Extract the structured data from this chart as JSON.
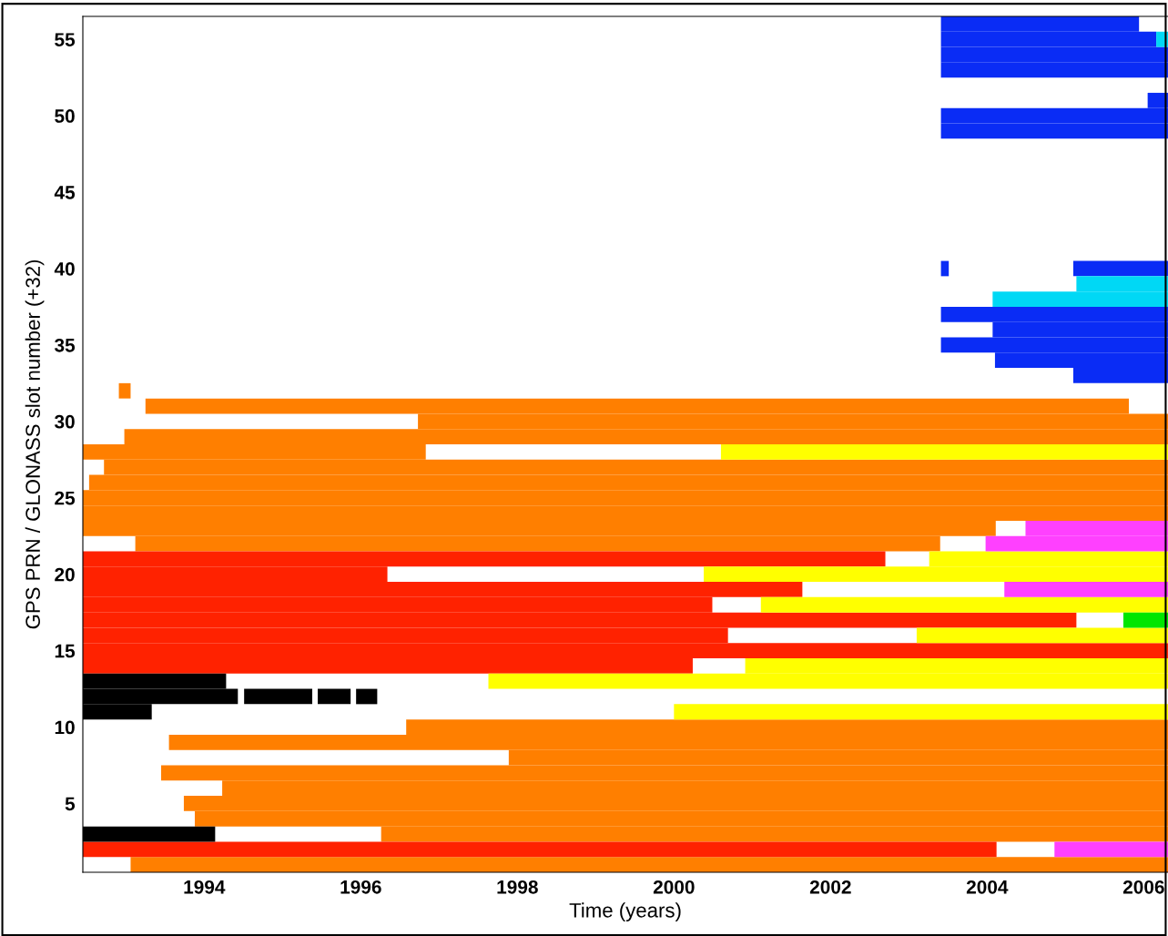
{
  "chart_data": {
    "type": "bar",
    "orientation": "horizontal",
    "xlabel": "Time (years)",
    "ylabel": "GPS PRN / GLONASS slot number (+32)",
    "categories": [
      null,
      "55",
      null,
      null,
      null,
      null,
      "50",
      null,
      null,
      null,
      null,
      "45",
      null,
      null,
      null,
      null,
      "40",
      null,
      null,
      null,
      null,
      "35",
      null,
      null,
      null,
      null,
      "30",
      null,
      null,
      null,
      null,
      "25",
      null,
      null,
      null,
      null,
      "20",
      null,
      null,
      null,
      null,
      "15",
      null,
      null,
      null,
      null,
      "10",
      null,
      null,
      null,
      null,
      "5",
      null,
      null,
      null,
      null
    ],
    "xlim": [
      1992.45,
      2006.31
    ],
    "xticks": [
      1994,
      1996,
      1998,
      2000,
      2002,
      2004,
      2006
    ],
    "series": [
      {
        "color": "#ff7f00",
        "base": [
          null,
          null,
          null,
          null,
          null,
          null,
          null,
          null,
          null,
          null,
          null,
          null,
          null,
          null,
          null,
          null,
          null,
          null,
          null,
          null,
          null,
          null,
          null,
          null,
          1992.91,
          1993.25,
          1996.73,
          1992.98,
          1992.45,
          1992.72,
          1992.53,
          1992.45,
          1992.45,
          1992.45,
          1993.12,
          null,
          null,
          null,
          null,
          null,
          null,
          null,
          null,
          null,
          null,
          null,
          1996.58,
          1993.55,
          1997.89,
          1993.45,
          1994.23,
          1993.74,
          1993.88,
          1996.26,
          null,
          1993.06
        ],
        "values": [
          null,
          null,
          null,
          null,
          null,
          null,
          null,
          null,
          null,
          null,
          null,
          null,
          null,
          null,
          null,
          null,
          null,
          null,
          null,
          null,
          null,
          null,
          null,
          null,
          0.15,
          12.56,
          9.58,
          13.33,
          4.38,
          13.59,
          13.78,
          13.86,
          13.86,
          11.66,
          10.28,
          null,
          null,
          null,
          null,
          null,
          null,
          null,
          null,
          null,
          null,
          null,
          9.73,
          12.76,
          8.42,
          12.86,
          12.08,
          12.57,
          12.43,
          10.05,
          null,
          13.25
        ]
      },
      {
        "color": "#ff2200",
        "base": [
          null,
          null,
          null,
          null,
          null,
          null,
          null,
          null,
          null,
          null,
          null,
          null,
          null,
          null,
          null,
          null,
          null,
          null,
          null,
          null,
          null,
          null,
          null,
          null,
          null,
          null,
          null,
          null,
          null,
          null,
          null,
          null,
          null,
          null,
          null,
          1992.45,
          1992.45,
          1992.45,
          1992.45,
          1992.45,
          1992.45,
          1992.45,
          1992.45,
          null,
          null,
          null,
          null,
          null,
          null,
          null,
          null,
          null,
          null,
          null,
          1992.45,
          null
        ],
        "values": [
          null,
          null,
          null,
          null,
          null,
          null,
          null,
          null,
          null,
          null,
          null,
          null,
          null,
          null,
          null,
          null,
          null,
          null,
          null,
          null,
          null,
          null,
          null,
          null,
          null,
          null,
          null,
          null,
          null,
          null,
          null,
          null,
          null,
          null,
          null,
          10.25,
          3.89,
          9.19,
          8.04,
          12.69,
          8.24,
          13.86,
          7.79,
          null,
          null,
          null,
          null,
          null,
          null,
          null,
          null,
          null,
          null,
          null,
          11.67,
          null
        ]
      },
      {
        "color": "#000000",
        "base": [
          null,
          null,
          null,
          null,
          null,
          null,
          null,
          null,
          null,
          null,
          null,
          null,
          null,
          null,
          null,
          null,
          null,
          null,
          null,
          null,
          null,
          null,
          null,
          null,
          null,
          null,
          null,
          null,
          null,
          null,
          null,
          null,
          null,
          null,
          null,
          null,
          null,
          null,
          null,
          null,
          null,
          null,
          null,
          1992.45,
          1992.45,
          1992.45,
          null,
          null,
          null,
          null,
          null,
          null,
          null,
          1992.45,
          null,
          null
        ],
        "values": [
          null,
          null,
          null,
          null,
          null,
          null,
          null,
          null,
          null,
          null,
          null,
          null,
          null,
          null,
          null,
          null,
          null,
          null,
          null,
          null,
          null,
          null,
          null,
          null,
          null,
          null,
          null,
          null,
          null,
          null,
          null,
          null,
          null,
          null,
          null,
          null,
          null,
          null,
          null,
          null,
          null,
          null,
          null,
          1.83,
          1.98,
          0.88,
          null,
          null,
          null,
          null,
          null,
          null,
          null,
          1.69,
          null,
          null
        ]
      },
      {
        "color": "#000000",
        "base": [
          null,
          null,
          null,
          null,
          null,
          null,
          null,
          null,
          null,
          null,
          null,
          null,
          null,
          null,
          null,
          null,
          null,
          null,
          null,
          null,
          null,
          null,
          null,
          null,
          null,
          null,
          null,
          null,
          null,
          null,
          null,
          null,
          null,
          null,
          null,
          null,
          null,
          null,
          null,
          null,
          null,
          null,
          null,
          null,
          1994.51,
          null,
          null,
          null,
          null,
          null,
          null,
          null,
          null,
          null,
          null,
          null
        ],
        "values": [
          null,
          null,
          null,
          null,
          null,
          null,
          null,
          null,
          null,
          null,
          null,
          null,
          null,
          null,
          null,
          null,
          null,
          null,
          null,
          null,
          null,
          null,
          null,
          null,
          null,
          null,
          null,
          null,
          null,
          null,
          null,
          null,
          null,
          null,
          null,
          null,
          null,
          null,
          null,
          null,
          null,
          null,
          null,
          null,
          0.87,
          null,
          null,
          null,
          null,
          null,
          null,
          null,
          null,
          null,
          null,
          null
        ]
      },
      {
        "color": "#000000",
        "base": [
          null,
          null,
          null,
          null,
          null,
          null,
          null,
          null,
          null,
          null,
          null,
          null,
          null,
          null,
          null,
          null,
          null,
          null,
          null,
          null,
          null,
          null,
          null,
          null,
          null,
          null,
          null,
          null,
          null,
          null,
          null,
          null,
          null,
          null,
          null,
          null,
          null,
          null,
          null,
          null,
          null,
          null,
          null,
          null,
          1995.45,
          null,
          null,
          null,
          null,
          null,
          null,
          null,
          null,
          null,
          null,
          null
        ],
        "values": [
          null,
          null,
          null,
          null,
          null,
          null,
          null,
          null,
          null,
          null,
          null,
          null,
          null,
          null,
          null,
          null,
          null,
          null,
          null,
          null,
          null,
          null,
          null,
          null,
          null,
          null,
          null,
          null,
          null,
          null,
          null,
          null,
          null,
          null,
          null,
          null,
          null,
          null,
          null,
          null,
          null,
          null,
          null,
          null,
          0.42,
          null,
          null,
          null,
          null,
          null,
          null,
          null,
          null,
          null,
          null,
          null
        ]
      },
      {
        "color": "#000000",
        "base": [
          null,
          null,
          null,
          null,
          null,
          null,
          null,
          null,
          null,
          null,
          null,
          null,
          null,
          null,
          null,
          null,
          null,
          null,
          null,
          null,
          null,
          null,
          null,
          null,
          null,
          null,
          null,
          null,
          null,
          null,
          null,
          null,
          null,
          null,
          null,
          null,
          null,
          null,
          null,
          null,
          null,
          null,
          null,
          null,
          1995.94,
          null,
          null,
          null,
          null,
          null,
          null,
          null,
          null,
          null,
          null,
          null
        ],
        "values": [
          null,
          null,
          null,
          null,
          null,
          null,
          null,
          null,
          null,
          null,
          null,
          null,
          null,
          null,
          null,
          null,
          null,
          null,
          null,
          null,
          null,
          null,
          null,
          null,
          null,
          null,
          null,
          null,
          null,
          null,
          null,
          null,
          null,
          null,
          null,
          null,
          null,
          null,
          null,
          null,
          null,
          null,
          null,
          null,
          0.27,
          null,
          null,
          null,
          null,
          null,
          null,
          null,
          null,
          null,
          null,
          null
        ]
      },
      {
        "color": "#ffff00",
        "base": [
          null,
          null,
          null,
          null,
          null,
          null,
          null,
          null,
          null,
          null,
          null,
          null,
          null,
          null,
          null,
          null,
          null,
          null,
          null,
          null,
          null,
          null,
          null,
          null,
          null,
          null,
          null,
          null,
          2000.6,
          null,
          null,
          null,
          null,
          null,
          null,
          2003.26,
          2000.38,
          null,
          2001.11,
          null,
          2003.1,
          null,
          2000.91,
          1997.63,
          null,
          2000.0,
          null,
          null,
          null,
          null,
          null,
          null,
          null,
          null,
          null,
          null
        ],
        "values": [
          null,
          null,
          null,
          null,
          null,
          null,
          null,
          null,
          null,
          null,
          null,
          null,
          null,
          null,
          null,
          null,
          null,
          null,
          null,
          null,
          null,
          null,
          null,
          null,
          null,
          null,
          null,
          null,
          5.71,
          null,
          null,
          null,
          null,
          null,
          null,
          3.05,
          5.93,
          null,
          5.2,
          null,
          3.21,
          null,
          5.4,
          8.68,
          null,
          6.31,
          null,
          null,
          null,
          null,
          null,
          null,
          null,
          null,
          null,
          null
        ]
      },
      {
        "color": "#ff40ff",
        "base": [
          null,
          null,
          null,
          null,
          null,
          null,
          null,
          null,
          null,
          null,
          null,
          null,
          null,
          null,
          null,
          null,
          null,
          null,
          null,
          null,
          null,
          null,
          null,
          null,
          null,
          null,
          null,
          null,
          null,
          null,
          null,
          null,
          null,
          2004.49,
          2003.98,
          null,
          null,
          2004.22,
          null,
          null,
          null,
          null,
          null,
          null,
          null,
          null,
          null,
          null,
          null,
          null,
          null,
          null,
          null,
          null,
          2004.86,
          null
        ],
        "values": [
          null,
          null,
          null,
          null,
          null,
          null,
          null,
          null,
          null,
          null,
          null,
          null,
          null,
          null,
          null,
          null,
          null,
          null,
          null,
          null,
          null,
          null,
          null,
          null,
          null,
          null,
          null,
          null,
          null,
          null,
          null,
          null,
          null,
          1.82,
          2.33,
          null,
          null,
          2.09,
          null,
          null,
          null,
          null,
          null,
          null,
          null,
          null,
          null,
          null,
          null,
          null,
          null,
          null,
          null,
          null,
          1.45,
          null
        ]
      },
      {
        "color": "#00e600",
        "base": [
          null,
          null,
          null,
          null,
          null,
          null,
          null,
          null,
          null,
          null,
          null,
          null,
          null,
          null,
          null,
          null,
          null,
          null,
          null,
          null,
          null,
          null,
          null,
          null,
          null,
          null,
          null,
          null,
          null,
          null,
          null,
          null,
          null,
          null,
          null,
          null,
          null,
          null,
          null,
          2005.74,
          null,
          null,
          null,
          null,
          null,
          null,
          null,
          null,
          null,
          null,
          null,
          null,
          null,
          null,
          null,
          null
        ],
        "values": [
          null,
          null,
          null,
          null,
          null,
          null,
          null,
          null,
          null,
          null,
          null,
          null,
          null,
          null,
          null,
          null,
          null,
          null,
          null,
          null,
          null,
          null,
          null,
          null,
          null,
          null,
          null,
          null,
          null,
          null,
          null,
          null,
          null,
          null,
          null,
          null,
          null,
          null,
          null,
          0.57,
          null,
          null,
          null,
          null,
          null,
          null,
          null,
          null,
          null,
          null,
          null,
          null,
          null,
          null,
          null,
          null
        ]
      },
      {
        "color": "#0a2cf5",
        "base": [
          2003.41,
          2003.41,
          2003.41,
          2003.41,
          null,
          2006.05,
          2003.41,
          2003.41,
          null,
          null,
          null,
          null,
          null,
          null,
          null,
          null,
          2003.41,
          null,
          null,
          2003.41,
          2004.07,
          2003.41,
          2004.1,
          2005.1,
          null,
          null,
          null,
          null,
          null,
          null,
          null,
          null,
          null,
          null,
          null,
          null,
          null,
          null,
          null,
          null,
          null,
          null,
          null,
          null,
          null,
          null,
          null,
          null,
          null,
          null,
          null,
          null,
          null,
          null,
          null,
          null
        ],
        "values": [
          2.53,
          2.75,
          2.9,
          2.9,
          null,
          0.26,
          2.9,
          2.9,
          null,
          null,
          null,
          null,
          null,
          null,
          null,
          null,
          0.1,
          null,
          null,
          2.9,
          2.24,
          2.9,
          2.21,
          1.21,
          null,
          null,
          null,
          null,
          null,
          null,
          null,
          null,
          null,
          null,
          null,
          null,
          null,
          null,
          null,
          null,
          null,
          null,
          null,
          null,
          null,
          null,
          null,
          null,
          null,
          null,
          null,
          null,
          null,
          null,
          null,
          null
        ]
      },
      {
        "color": "#0a2cf5",
        "base": [
          null,
          null,
          null,
          null,
          null,
          null,
          null,
          null,
          null,
          null,
          null,
          null,
          null,
          null,
          null,
          null,
          2005.1,
          null,
          null,
          null,
          null,
          null,
          null,
          null,
          null,
          null,
          null,
          null,
          null,
          null,
          null,
          null,
          null,
          null,
          null,
          null,
          null,
          null,
          null,
          null,
          null,
          null,
          null,
          null,
          null,
          null,
          null,
          null,
          null,
          null,
          null,
          null,
          null,
          null,
          null,
          null
        ],
        "values": [
          null,
          null,
          null,
          null,
          null,
          null,
          null,
          null,
          null,
          null,
          null,
          null,
          null,
          null,
          null,
          null,
          1.21,
          null,
          null,
          null,
          null,
          null,
          null,
          null,
          null,
          null,
          null,
          null,
          null,
          null,
          null,
          null,
          null,
          null,
          null,
          null,
          null,
          null,
          null,
          null,
          null,
          null,
          null,
          null,
          null,
          null,
          null,
          null,
          null,
          null,
          null,
          null,
          null,
          null,
          null,
          null
        ]
      },
      {
        "color": "#00d8f5",
        "base": [
          null,
          2006.16,
          null,
          null,
          null,
          null,
          null,
          null,
          null,
          null,
          null,
          null,
          null,
          null,
          null,
          null,
          null,
          2005.14,
          2004.07,
          null,
          null,
          null,
          null,
          null,
          null,
          null,
          null,
          null,
          null,
          null,
          null,
          null,
          null,
          null,
          null,
          null,
          null,
          null,
          null,
          null,
          null,
          null,
          null,
          null,
          null,
          null,
          null,
          null,
          null,
          null,
          null,
          null,
          null,
          null,
          null,
          null
        ],
        "values": [
          null,
          0.15,
          null,
          null,
          null,
          null,
          null,
          null,
          null,
          null,
          null,
          null,
          null,
          null,
          null,
          null,
          null,
          1.17,
          2.24,
          null,
          null,
          null,
          null,
          null,
          null,
          null,
          null,
          null,
          null,
          null,
          null,
          null,
          null,
          null,
          null,
          null,
          null,
          null,
          null,
          null,
          null,
          null,
          null,
          null,
          null,
          null,
          null,
          null,
          null,
          null,
          null,
          null,
          null,
          null,
          null,
          null
        ]
      }
    ]
  }
}
